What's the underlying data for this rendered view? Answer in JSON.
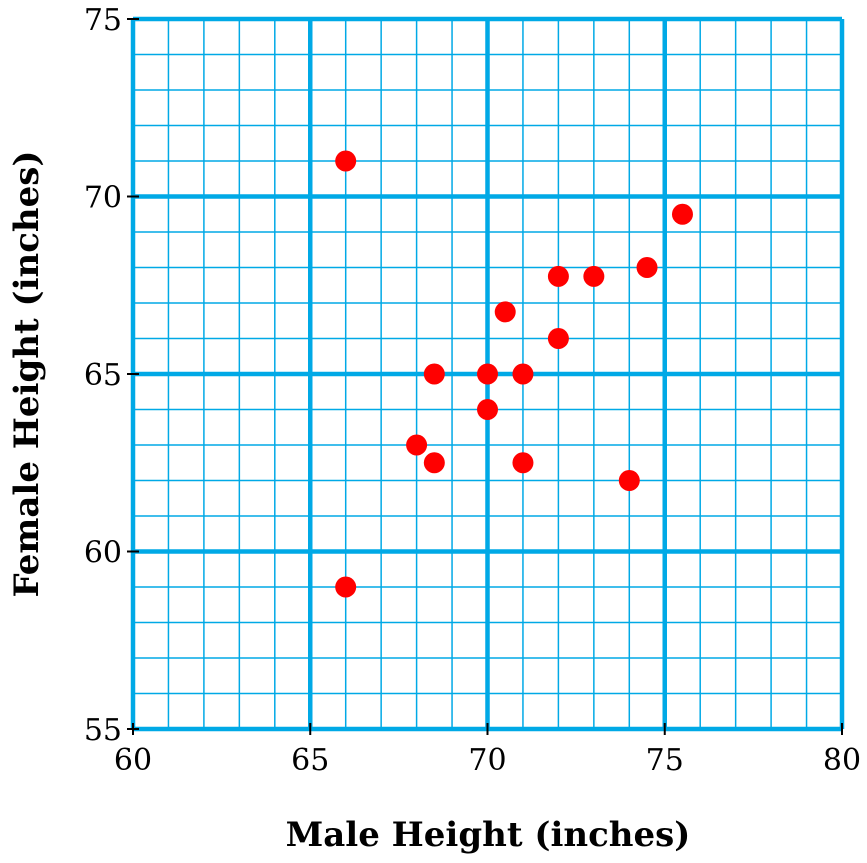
{
  "colors": {
    "grid": "#00a9e6",
    "point": "#ff0000",
    "text": "#000000"
  },
  "chart_data": {
    "type": "scatter",
    "title": "",
    "xlabel": "Male Height (inches)",
    "ylabel": "Female Height (inches)",
    "xlim": [
      60,
      80
    ],
    "ylim": [
      55,
      75
    ],
    "xticks": [
      60,
      65,
      70,
      75,
      80
    ],
    "yticks": [
      55,
      60,
      65,
      70,
      75
    ],
    "x_tick_labels": [
      "60",
      "65",
      "70",
      "75",
      "80"
    ],
    "y_tick_labels": [
      "55",
      "60",
      "65",
      "70",
      "75"
    ],
    "minor_step": 1,
    "grid": true,
    "series": [
      {
        "points": [
          {
            "x": 66,
            "y": 71
          },
          {
            "x": 66,
            "y": 59
          },
          {
            "x": 68,
            "y": 63
          },
          {
            "x": 68.5,
            "y": 65
          },
          {
            "x": 68.5,
            "y": 62.5
          },
          {
            "x": 70,
            "y": 65
          },
          {
            "x": 70,
            "y": 64
          },
          {
            "x": 70.5,
            "y": 66.75
          },
          {
            "x": 71,
            "y": 65
          },
          {
            "x": 71,
            "y": 62.5
          },
          {
            "x": 72,
            "y": 67.75
          },
          {
            "x": 72,
            "y": 66
          },
          {
            "x": 73,
            "y": 67.75
          },
          {
            "x": 74,
            "y": 62
          },
          {
            "x": 74.5,
            "y": 68
          },
          {
            "x": 75.5,
            "y": 69.5
          }
        ]
      }
    ]
  }
}
